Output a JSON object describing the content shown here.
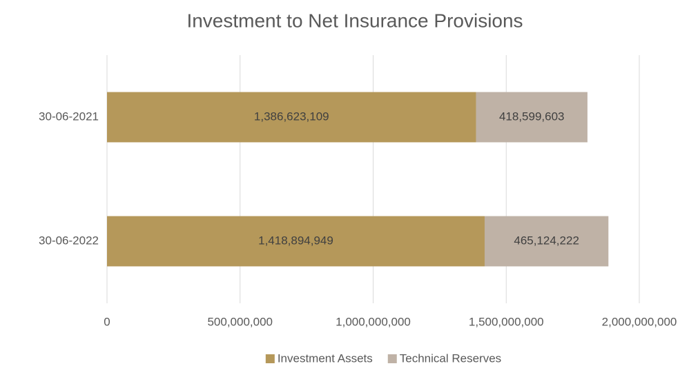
{
  "chart_data": {
    "type": "stacked_barh",
    "title": "Investment to Net Insurance Provisions",
    "categories": [
      "30-06-2021",
      "30-06-2022"
    ],
    "series": [
      {
        "name": "Investment Assets",
        "color": "#b5985a",
        "values": [
          1386623109,
          1418894949
        ],
        "value_labels": [
          "1,386,623,109",
          "1,418,894,949"
        ]
      },
      {
        "name": "Technical Reserves",
        "color": "#bfb2a6",
        "values": [
          418599603,
          465124222
        ],
        "value_labels": [
          "418,599,603",
          "465,124,222"
        ]
      }
    ],
    "xlim": [
      0,
      2000000000
    ],
    "xticks": [
      0,
      {
        "value": 500000000,
        "label": "500,000,000"
      },
      {
        "value": 1000000000,
        "label": "1,000,000,000"
      },
      {
        "value": 1500000000,
        "label": "1,500,000,000"
      },
      {
        "value": 2000000000,
        "label": "2,000,000,000"
      }
    ],
    "grid": true,
    "legend": "bottom"
  }
}
